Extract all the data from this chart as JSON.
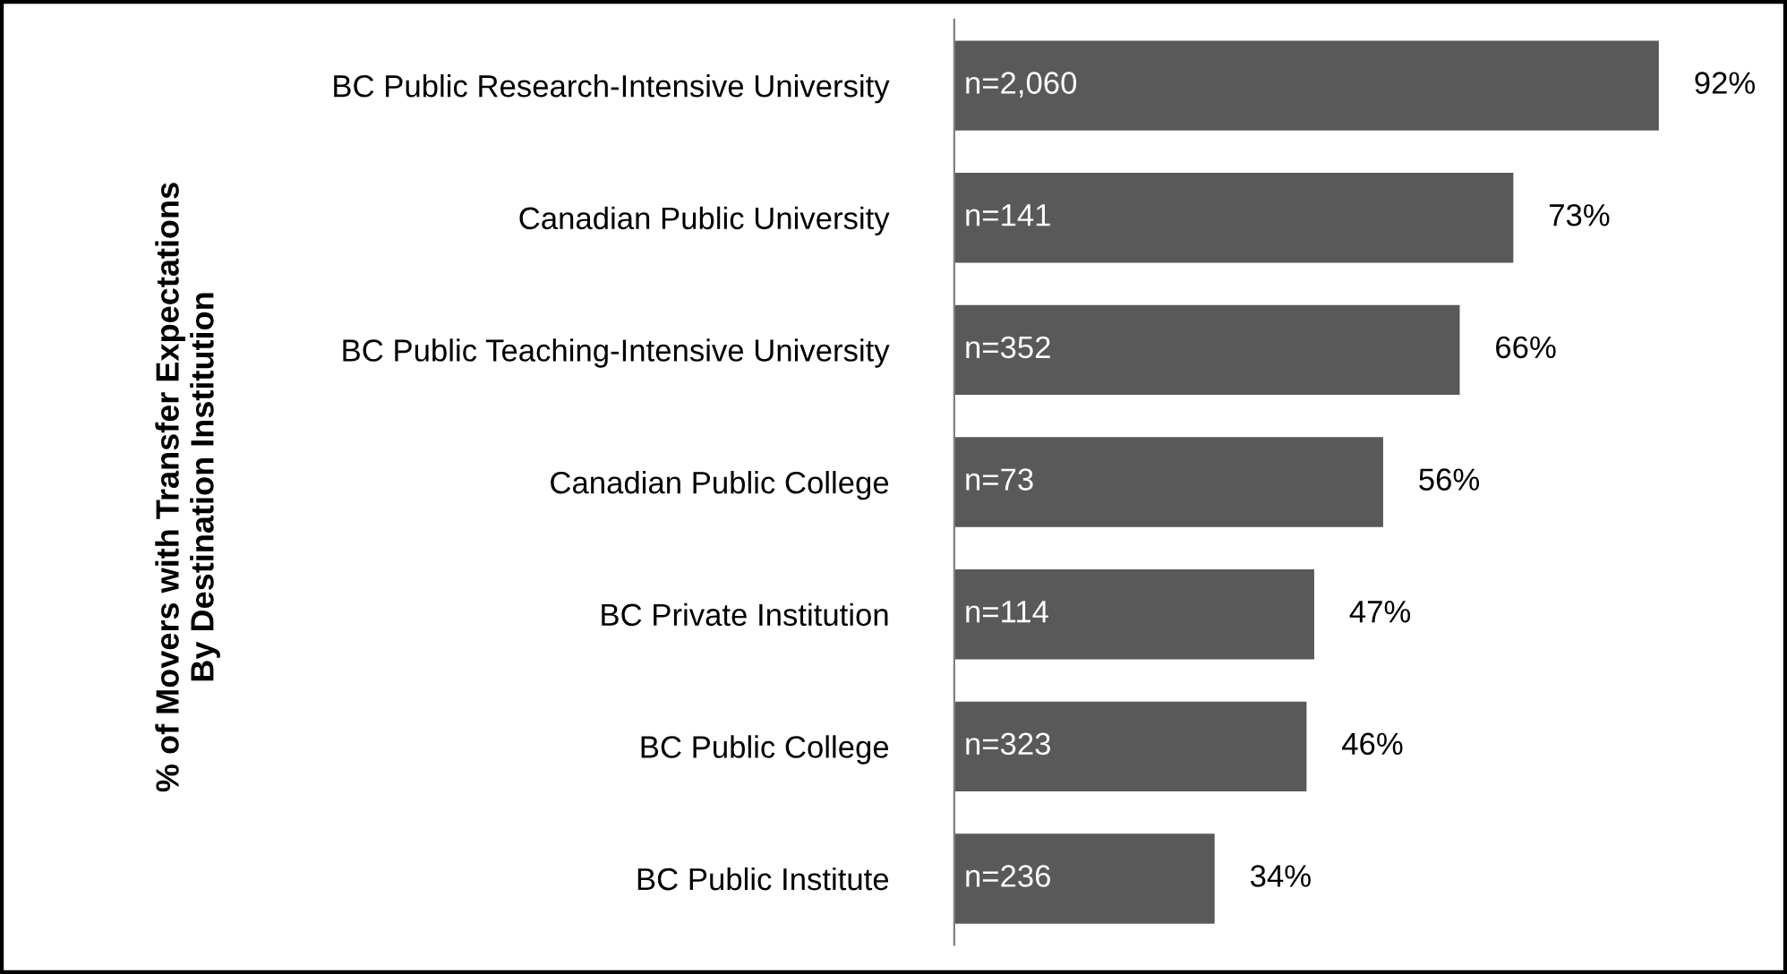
{
  "chart_data": {
    "type": "bar",
    "orientation": "horizontal",
    "ylabel": "% of Movers with Transfer Expectations\nBy Destination Institution",
    "categories": [
      "BC Public Research-Intensive University",
      "Canadian Public University",
      "BC Public Teaching-Intensive University",
      "Canadian Public College",
      "BC Private Institution",
      "BC Public College",
      "BC Public Institute"
    ],
    "values": [
      92,
      73,
      66,
      56,
      47,
      46,
      34
    ],
    "value_labels": [
      "92%",
      "73%",
      "66%",
      "56%",
      "47%",
      "46%",
      "34%"
    ],
    "color": "#595959",
    "tick_labels": "y",
    "grid": false,
    "legend": false,
    "annotations": [
      "n=2,060",
      "n=141",
      "n=352",
      "n=73",
      "n=114",
      "n=323",
      "n=236"
    ]
  }
}
